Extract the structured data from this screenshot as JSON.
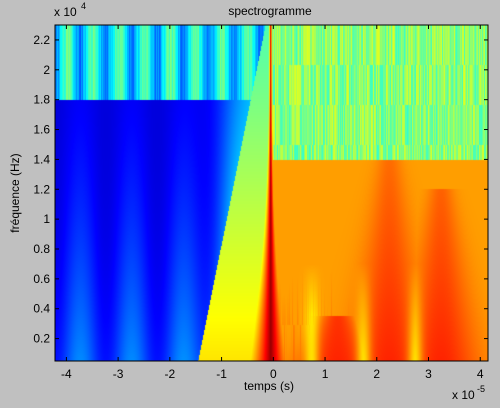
{
  "chart_data": {
    "type": "heatmap",
    "title": "spectrogramme",
    "xlabel": "temps (s)",
    "ylabel": "fréquence (Hz)",
    "x_exponent_label": "x 10",
    "x_exponent": "-5",
    "y_exponent_label": "x 10",
    "y_exponent": "4",
    "xlim": [
      -4.22,
      4.15
    ],
    "ylim": [
      500,
      23000
    ],
    "xticks": [
      -4,
      -3,
      -2,
      -1,
      0,
      1,
      2,
      3,
      4
    ],
    "yticks": [
      0.2,
      0.4,
      0.6,
      0.8,
      1,
      1.2,
      1.4,
      1.6,
      1.8,
      2,
      2.2
    ],
    "yticks_scale": 10000,
    "colormap": "jet",
    "grid": false,
    "features": {
      "impulse_time": -0.05,
      "ridges_low_freq": [
        {
          "t": 1.25,
          "f_max": 3500
        },
        {
          "t": 2.25,
          "f_max": 14000
        },
        {
          "t": 3.25,
          "f_max": 12000
        }
      ],
      "left_region_pre_impulse": "low energy (dark blue)",
      "high_freq_band_left": "periodic cyan streaks above ~18000 Hz"
    }
  }
}
